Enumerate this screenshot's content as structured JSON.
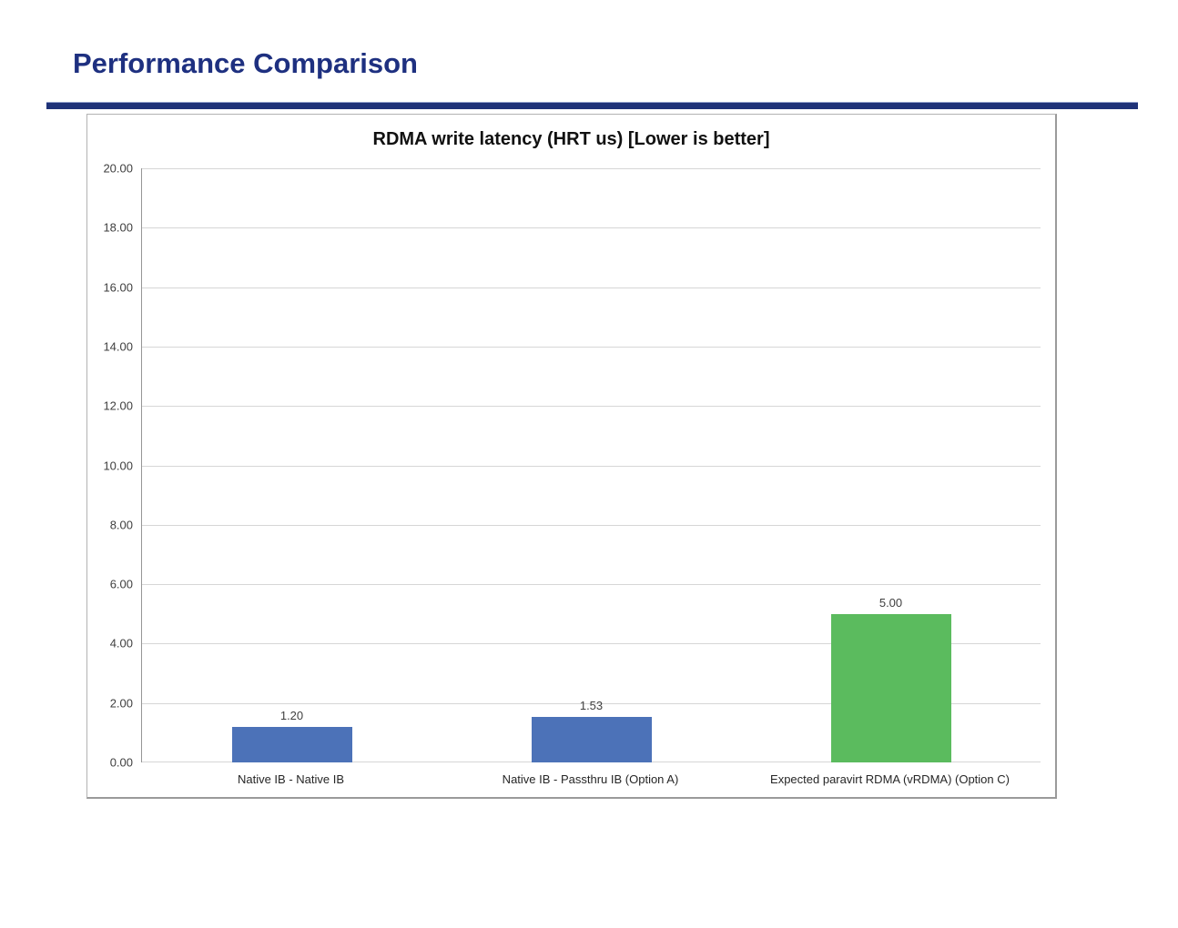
{
  "page": {
    "title": "Performance Comparison",
    "accent_color": "#1f3278"
  },
  "chart_data": {
    "type": "bar",
    "title": "RDMA write latency (HRT us) [Lower is better]",
    "categories": [
      "Native IB - Native IB",
      "Native IB - Passthru IB (Option A)",
      "Expected paravirt RDMA (vRDMA) (Option C)"
    ],
    "values": [
      1.2,
      1.53,
      5.0
    ],
    "value_labels": [
      "1.20",
      "1.53",
      "5.00"
    ],
    "bar_colors": [
      "#4c72b8",
      "#4c72b8",
      "#5bbb5e"
    ],
    "xlabel": "",
    "ylabel": "",
    "ylim": [
      0,
      20
    ],
    "ytick_step": 2,
    "ytick_decimals": 2,
    "grid": true,
    "legend": "none",
    "gridline_color": "#d6d6d6",
    "axis_line_color": "#969696",
    "label_color": "#3f3f3f"
  }
}
